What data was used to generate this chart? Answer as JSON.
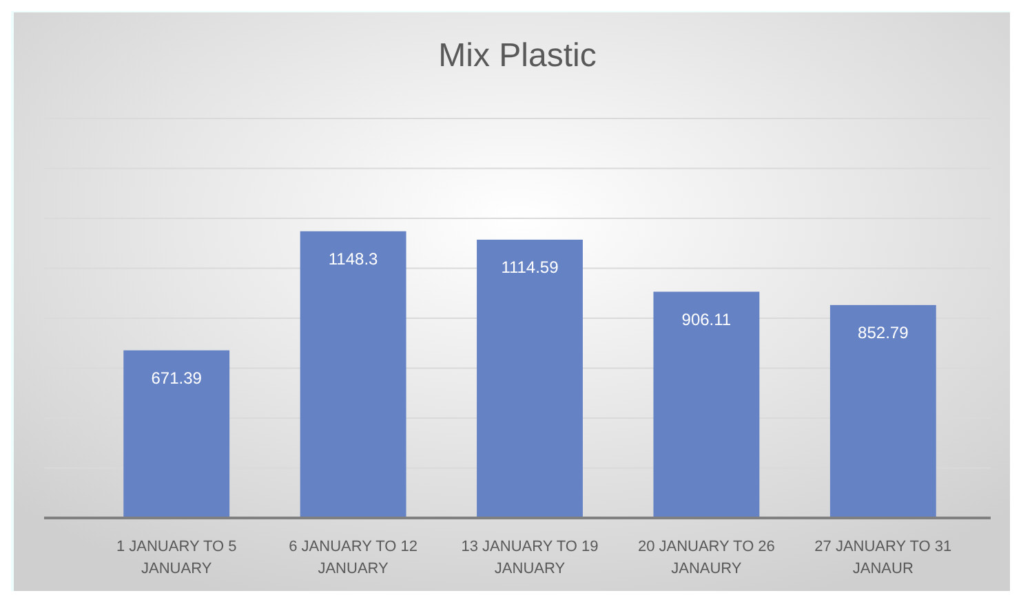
{
  "chart_data": {
    "type": "bar",
    "title": "Mix Plastic",
    "categories": [
      "1 JANUARY TO 5 JANUARY",
      "6 JANUARY TO 12 JANUARY",
      "13 JANUARY TO 19 JANUARY",
      "20 JANUARY TO 26 JANAURY",
      "27 JANUARY TO 31 JANAUR"
    ],
    "values": [
      671.39,
      1148.3,
      1114.59,
      906.11,
      852.79
    ],
    "color": "#6582c4",
    "ylim": [
      0,
      1600
    ],
    "yticks": [
      {
        "value": 0,
        "label": null
      },
      {
        "value": 200,
        "label": null
      },
      {
        "value": 400,
        "label": null
      },
      {
        "value": 600,
        "label": null
      },
      {
        "value": 800,
        "label": null
      },
      {
        "value": 1000,
        "label": null
      },
      {
        "value": 1200,
        "label": null
      },
      {
        "value": 1400,
        "label": null
      },
      {
        "value": 1600,
        "label": null
      }
    ],
    "grid": "y",
    "tick_labels": "x",
    "data_labels": true
  }
}
